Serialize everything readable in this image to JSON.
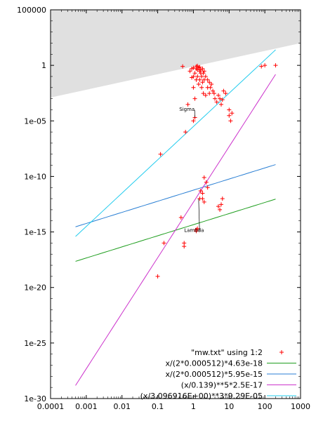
{
  "chart_data": {
    "type": "scatter",
    "x_scale": "log",
    "y_scale": "log",
    "xlim": [
      0.0001,
      1000
    ],
    "ylim": [
      1e-30,
      100000
    ],
    "x_ticks": [
      {
        "value": 0.0001,
        "label": "0.0001"
      },
      {
        "value": 0.001,
        "label": "0.001"
      },
      {
        "value": 0.01,
        "label": "0.01"
      },
      {
        "value": 0.1,
        "label": "0.1"
      },
      {
        "value": 1,
        "label": "1"
      },
      {
        "value": 10,
        "label": "10"
      },
      {
        "value": 100,
        "label": "100"
      },
      {
        "value": 1000,
        "label": "1000"
      }
    ],
    "y_ticks": [
      {
        "value": 1e-30,
        "label": "1e-30"
      },
      {
        "value": 1e-25,
        "label": "1e-25"
      },
      {
        "value": 1e-20,
        "label": "1e-20"
      },
      {
        "value": 1e-15,
        "label": "1e-15"
      },
      {
        "value": 1e-10,
        "label": "1e-10"
      },
      {
        "value": 1e-05,
        "label": "1e-05"
      },
      {
        "value": 1,
        "label": "1"
      },
      {
        "value": 100000,
        "label": "100000"
      }
    ],
    "shaded_region": {
      "color": "#e0e0e0",
      "points": [
        [
          0.0001,
          0.00126
        ],
        [
          1000,
          100
        ],
        [
          1000,
          100000
        ],
        [
          0.0001,
          100000
        ]
      ]
    },
    "series": [
      {
        "name": "\"mw.txt\" using 1:2",
        "kind": "points",
        "marker": "+",
        "color": "#ff0000",
        "points": [
          [
            0.1,
            1e-19
          ],
          [
            0.12,
            1e-08
          ],
          [
            0.15,
            1e-16
          ],
          [
            0.5,
            0.8
          ],
          [
            0.6,
            1e-06
          ],
          [
            0.55,
            1e-16
          ],
          [
            0.55,
            5e-17
          ],
          [
            0.45,
            2e-14
          ],
          [
            0.8,
            0.3
          ],
          [
            0.9,
            0.5
          ],
          [
            1.0,
            0.1
          ],
          [
            1.0,
            0.01
          ],
          [
            1.1,
            0.2
          ],
          [
            1.1,
            0.001
          ],
          [
            1.2,
            0.05
          ],
          [
            1.2,
            0.5
          ],
          [
            1.3,
            0.4
          ],
          [
            1.3,
            0.1
          ],
          [
            1.4,
            0.6
          ],
          [
            1.4,
            0.02
          ],
          [
            1.5,
            0.3
          ],
          [
            1.5,
            0.05
          ],
          [
            1.6,
            0.4
          ],
          [
            1.6,
            0.2
          ],
          [
            1.7,
            0.1
          ],
          [
            1.7,
            0.01
          ],
          [
            1.8,
            0.5
          ],
          [
            1.8,
            0.03
          ],
          [
            1.9,
            0.2
          ],
          [
            1.9,
            0.003
          ],
          [
            2.0,
            0.3
          ],
          [
            2.0,
            0.05
          ],
          [
            2.2,
            0.1
          ],
          [
            2.2,
            0.002
          ],
          [
            2.5,
            0.05
          ],
          [
            2.5,
            0.01
          ],
          [
            2.8,
            0.03
          ],
          [
            2.8,
            0.003
          ],
          [
            3.0,
            0.01
          ],
          [
            3.2,
            0.02
          ],
          [
            3.5,
            0.005
          ],
          [
            3.8,
            0.003
          ],
          [
            4.0,
            0.001
          ],
          [
            4.5,
            0.0005
          ],
          [
            5.0,
            0.002
          ],
          [
            5.5,
            0.001
          ],
          [
            6.0,
            0.0003
          ],
          [
            6.5,
            0.0008
          ],
          [
            7.0,
            0.005
          ],
          [
            8.0,
            0.003
          ],
          [
            10.0,
            0.0001
          ],
          [
            10.0,
            3e-05
          ],
          [
            11.0,
            1e-05
          ],
          [
            12.0,
            5e-05
          ],
          [
            100.0,
            1.0
          ],
          [
            80.0,
            0.8
          ],
          [
            200.0,
            1.0
          ],
          [
            1.2,
            0.8
          ],
          [
            1.3,
            0.9
          ],
          [
            1.5,
            0.7
          ],
          [
            1.0,
            0.6
          ],
          [
            0.9,
            0.08
          ],
          [
            1.1,
            2e-05
          ],
          [
            1.0,
            1e-05
          ],
          [
            0.7,
            0.0003
          ],
          [
            1.2,
            1.2e-15
          ],
          [
            1.2,
            1.6e-15
          ],
          [
            1.3,
            2e-15
          ],
          [
            1.5,
            1e-12
          ],
          [
            1.6,
            5e-12
          ],
          [
            1.8,
            1e-12
          ],
          [
            2.0,
            8e-11
          ],
          [
            2.3,
            3e-11
          ],
          [
            2.5,
            1e-11
          ],
          [
            5.0,
            2e-13
          ],
          [
            6.0,
            3e-13
          ],
          [
            5.5,
            1e-13
          ],
          [
            6.5,
            1e-12
          ],
          [
            1.8,
            3e-12
          ],
          [
            2.0,
            5e-13
          ]
        ]
      },
      {
        "name": "x/(2*0.000512)*4.63e-18",
        "kind": "line",
        "color": "#1f9e1f",
        "x_range": [
          0.0005,
          200
        ],
        "a": 0.000512,
        "k": 4.63e-18,
        "p": 1,
        "form": "twice"
      },
      {
        "name": "x/(2*0.000512)*5.95e-15",
        "kind": "line",
        "color": "#2a7fd4",
        "x_range": [
          0.0005,
          200
        ],
        "a": 0.000512,
        "k": 5.95e-15,
        "p": 1,
        "form": "twice"
      },
      {
        "name": "(x/0.139)**5*2.5E-17",
        "kind": "line",
        "color": "#cc33cc",
        "x_range": [
          0.0005,
          200
        ],
        "a": 0.139,
        "k": 2.5e-17,
        "p": 5,
        "form": "plain"
      },
      {
        "name": "(x/3.096916E+00)**3*9.29E-05",
        "kind": "line",
        "color": "#22ccee",
        "x_range": [
          0.0005,
          200
        ],
        "a": 3.096916,
        "k": 9.29e-05,
        "p": 3,
        "form": "plain"
      }
    ],
    "annotations": [
      {
        "text": "Sigma",
        "x": 0.4,
        "y": 8e-05,
        "target": [
          1.1,
          2e-05
        ]
      },
      {
        "text": "Lambda",
        "x": 0.55,
        "y": 1e-15,
        "target": [
          1.4,
          1e-12
        ]
      }
    ],
    "legend_position": "bottom-right",
    "grid": false
  }
}
